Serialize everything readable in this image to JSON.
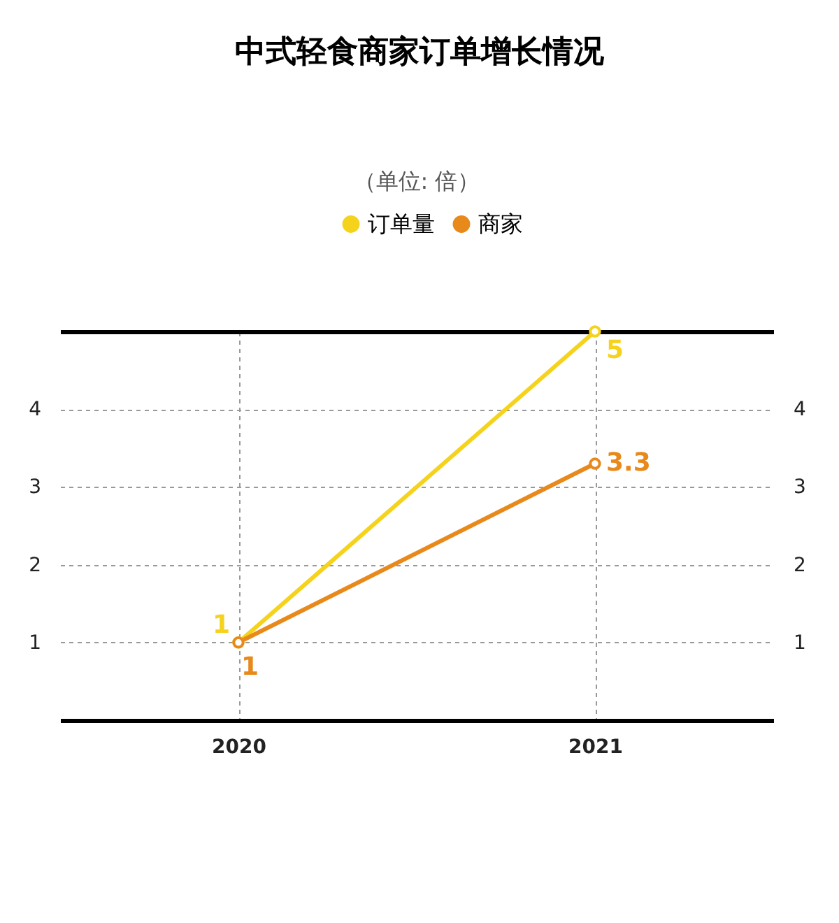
{
  "chart_data": {
    "type": "line",
    "title": "中式轻食商家订单增长情况",
    "subtitle": "（单位: 倍）",
    "categories": [
      "2020",
      "2021"
    ],
    "series": [
      {
        "name": "订单量",
        "color": "#f5d31c",
        "values": [
          1,
          5
        ]
      },
      {
        "name": "商家",
        "color": "#e8891c",
        "values": [
          1,
          3.3
        ]
      }
    ],
    "ylim": [
      0,
      5
    ],
    "yticks": [
      {
        "value": 0,
        "label": null
      },
      1,
      2,
      3,
      4,
      {
        "value": 5,
        "label": null
      }
    ],
    "y2lim": [
      0,
      5
    ],
    "y2ticks": [
      1,
      2,
      3,
      4
    ],
    "grid": true,
    "legend": "top",
    "marker": "circle",
    "line_style": "solid",
    "data_labels": true
  }
}
